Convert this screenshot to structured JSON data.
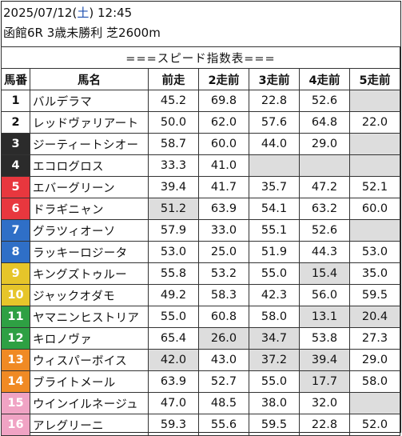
{
  "header": {
    "date": "2025/07/12",
    "open_paren": "(",
    "day_of_week": "土",
    "close_paren": ")",
    "time": "12:45",
    "race_info": "函館6R 3歳未勝利 芝2600m"
  },
  "table": {
    "title": "===スピード指数表===",
    "columns": [
      "馬番",
      "馬名",
      "前走",
      "2走前",
      "3走前",
      "4走前",
      "5走前"
    ],
    "gate_colors": {
      "1": {
        "bg": "#ffffff",
        "fg": "#111111"
      },
      "2": {
        "bg": "#ffffff",
        "fg": "#111111"
      },
      "3": {
        "bg": "#2b2b2b",
        "fg": "#ffffff"
      },
      "4": {
        "bg": "#2b2b2b",
        "fg": "#ffffff"
      },
      "5": {
        "bg": "#e8373e",
        "fg": "#ffffff"
      },
      "6": {
        "bg": "#e8373e",
        "fg": "#ffffff"
      },
      "7": {
        "bg": "#2f6fc7",
        "fg": "#ffffff"
      },
      "8": {
        "bg": "#2f6fc7",
        "fg": "#ffffff"
      },
      "9": {
        "bg": "#e6c52a",
        "fg": "#ffffff"
      },
      "10": {
        "bg": "#e6c52a",
        "fg": "#ffffff"
      },
      "11": {
        "bg": "#2ea043",
        "fg": "#ffffff"
      },
      "12": {
        "bg": "#2ea043",
        "fg": "#ffffff"
      },
      "13": {
        "bg": "#f08a24",
        "fg": "#ffffff"
      },
      "14": {
        "bg": "#f08a24",
        "fg": "#ffffff"
      },
      "15": {
        "bg": "#f0a3c4",
        "fg": "#ffffff"
      },
      "16": {
        "bg": "#f0a3c4",
        "fg": "#ffffff"
      }
    },
    "rows": [
      {
        "num": "1",
        "name": "バルデラマ",
        "vals": [
          "45.2",
          "69.8",
          "22.8",
          "52.6",
          ""
        ],
        "shaded": [
          false,
          false,
          false,
          false,
          false
        ]
      },
      {
        "num": "2",
        "name": "レッドヴァリアート",
        "vals": [
          "50.0",
          "62.0",
          "57.6",
          "64.8",
          "22.0"
        ],
        "shaded": [
          false,
          false,
          false,
          false,
          false
        ]
      },
      {
        "num": "3",
        "name": "ジーティートシオー",
        "vals": [
          "58.7",
          "60.0",
          "44.0",
          "29.0",
          ""
        ],
        "shaded": [
          false,
          false,
          false,
          false,
          false
        ]
      },
      {
        "num": "4",
        "name": "エコログロス",
        "vals": [
          "33.3",
          "41.0",
          "",
          "",
          ""
        ],
        "shaded": [
          false,
          false,
          false,
          false,
          false
        ]
      },
      {
        "num": "5",
        "name": "エバーグリーン",
        "vals": [
          "39.4",
          "41.7",
          "35.7",
          "47.2",
          "52.1"
        ],
        "shaded": [
          false,
          false,
          false,
          false,
          false
        ]
      },
      {
        "num": "6",
        "name": "ドラギニャン",
        "vals": [
          "51.2",
          "63.9",
          "54.1",
          "63.2",
          "60.0"
        ],
        "shaded": [
          true,
          false,
          false,
          false,
          false
        ]
      },
      {
        "num": "7",
        "name": "グラツィオーソ",
        "vals": [
          "57.9",
          "33.0",
          "55.1",
          "52.6",
          ""
        ],
        "shaded": [
          false,
          false,
          false,
          false,
          false
        ]
      },
      {
        "num": "8",
        "name": "ラッキーロジータ",
        "vals": [
          "53.0",
          "25.0",
          "51.9",
          "44.3",
          "53.0"
        ],
        "shaded": [
          false,
          false,
          false,
          false,
          false
        ]
      },
      {
        "num": "9",
        "name": "キングズトゥルー",
        "vals": [
          "55.8",
          "53.2",
          "55.0",
          "15.4",
          "35.0"
        ],
        "shaded": [
          false,
          false,
          false,
          true,
          false
        ]
      },
      {
        "num": "10",
        "name": "ジャックオダモ",
        "vals": [
          "49.2",
          "58.3",
          "42.3",
          "56.0",
          "59.5"
        ],
        "shaded": [
          false,
          false,
          false,
          false,
          false
        ]
      },
      {
        "num": "11",
        "name": "ヤマニンヒストリア",
        "vals": [
          "55.0",
          "60.8",
          "58.0",
          "13.1",
          "20.4"
        ],
        "shaded": [
          false,
          false,
          false,
          true,
          true
        ]
      },
      {
        "num": "12",
        "name": "キロノヴァ",
        "vals": [
          "65.4",
          "26.0",
          "34.7",
          "53.8",
          "27.3"
        ],
        "shaded": [
          false,
          true,
          true,
          false,
          false
        ]
      },
      {
        "num": "13",
        "name": "ウィスパーボイス",
        "vals": [
          "42.0",
          "43.0",
          "37.2",
          "39.4",
          "29.0"
        ],
        "shaded": [
          true,
          false,
          true,
          true,
          false
        ]
      },
      {
        "num": "14",
        "name": "ブライトメール",
        "vals": [
          "63.9",
          "52.7",
          "55.0",
          "17.7",
          "58.0"
        ],
        "shaded": [
          false,
          false,
          false,
          true,
          false
        ]
      },
      {
        "num": "15",
        "name": "ウインイルネージュ",
        "vals": [
          "47.0",
          "48.5",
          "38.0",
          "32.0",
          ""
        ],
        "shaded": [
          false,
          false,
          false,
          false,
          false
        ]
      },
      {
        "num": "16",
        "name": "アレグリーニ",
        "vals": [
          "59.3",
          "55.6",
          "59.5",
          "22.8",
          "52.0"
        ],
        "shaded": [
          false,
          false,
          false,
          false,
          false
        ]
      }
    ]
  }
}
